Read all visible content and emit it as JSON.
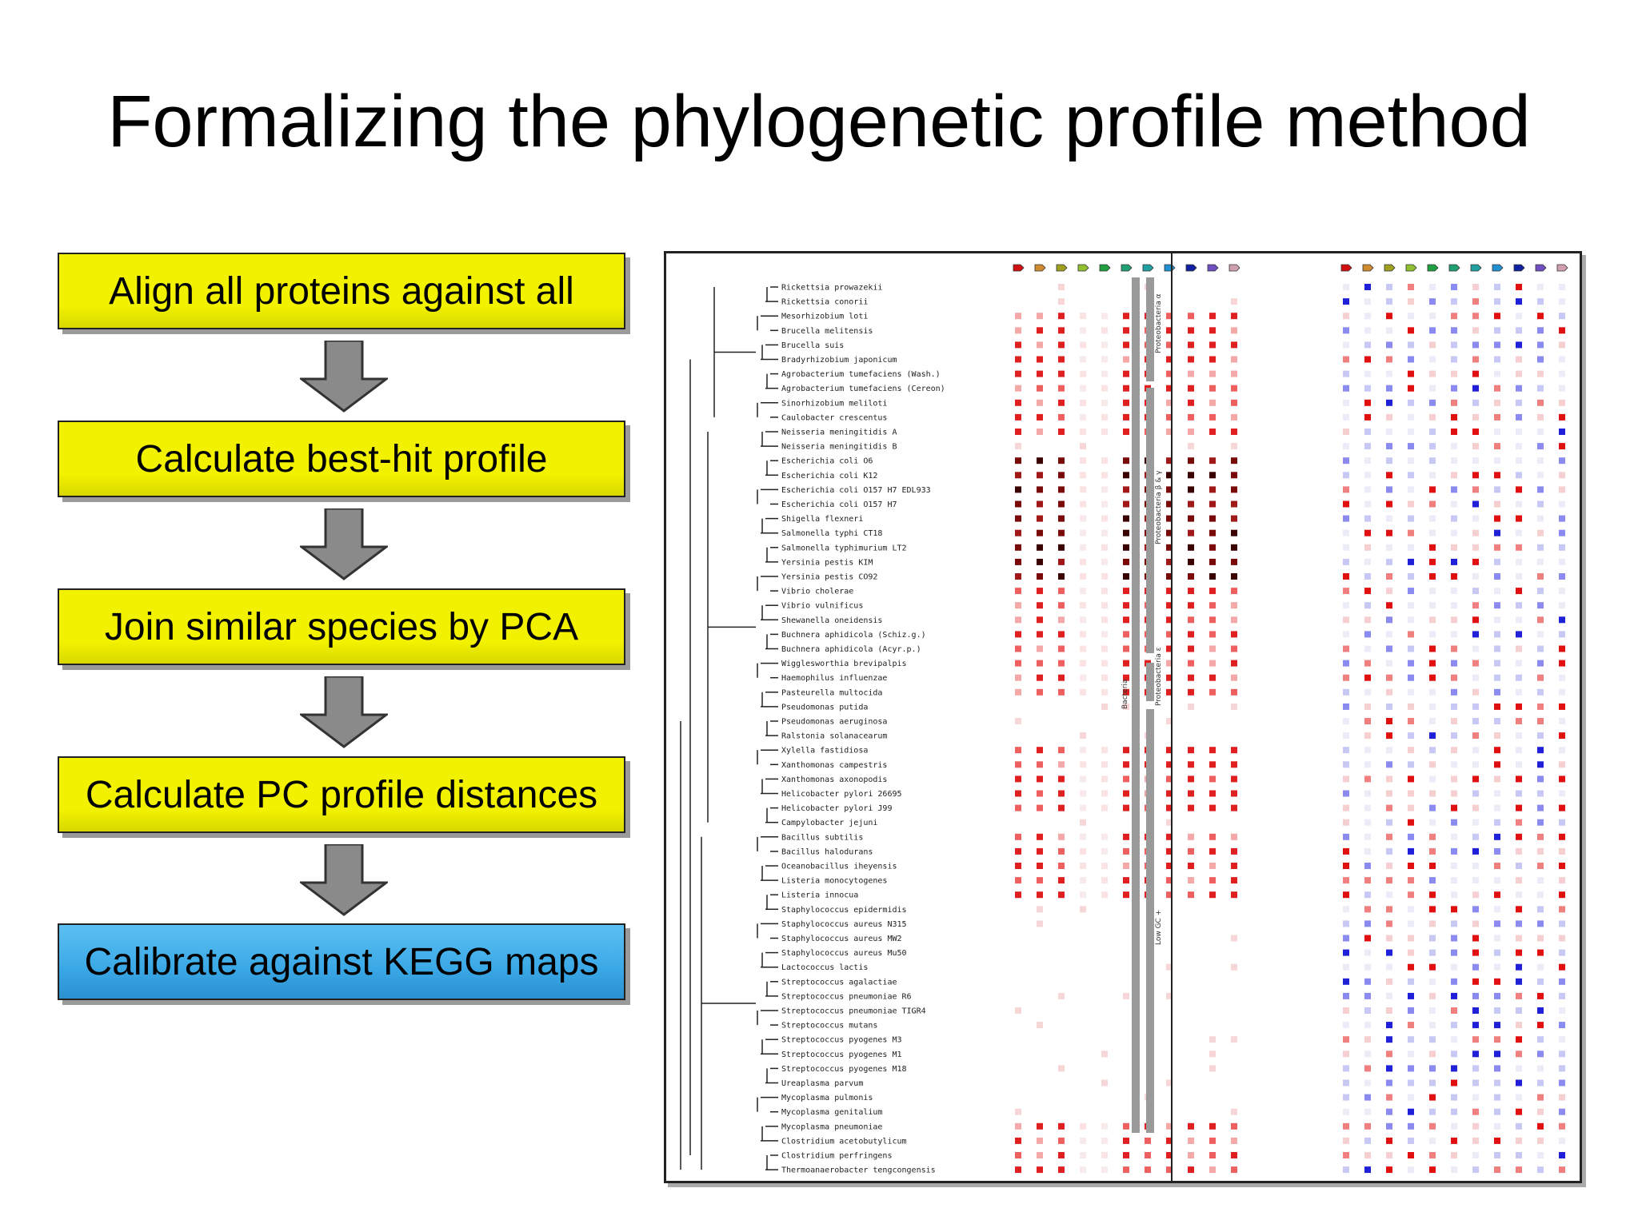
{
  "slide": {
    "title": "Formalizing the phylogenetic profile method",
    "steps": [
      {
        "label": "Align all proteins against all",
        "color": "#f2f200"
      },
      {
        "label": "Calculate best-hit profile",
        "color": "#f2f200"
      },
      {
        "label": "Join similar species by PCA",
        "color": "#f2f200"
      },
      {
        "label": "Calculate PC profile distances",
        "color": "#f2f200"
      },
      {
        "label": "Calibrate against KEGG maps",
        "color": "#3aa8e6"
      }
    ],
    "arrow_icon": "down-arrow-icon"
  },
  "figure": {
    "species": [
      "Rickettsia prowazekii",
      "Rickettsia conorii",
      "Mesorhizobium loti",
      "Brucella melitensis",
      "Brucella suis",
      "Bradyrhizobium japonicum",
      "Agrobacterium tumefaciens (Wash.)",
      "Agrobacterium tumefaciens (Cereon)",
      "Sinorhizobium meliloti",
      "Caulobacter crescentus",
      "Neisseria meningitidis A",
      "Neisseria meningitidis B",
      "Escherichia coli O6",
      "Escherichia coli K12",
      "Escherichia coli O157 H7 EDL933",
      "Escherichia coli O157 H7",
      "Shigella flexneri",
      "Salmonella typhi CT18",
      "Salmonella typhimurium LT2",
      "Yersinia pestis KIM",
      "Yersinia pestis CO92",
      "Vibrio cholerae",
      "Vibrio vulnificus",
      "Shewanella oneidensis",
      "Buchnera aphidicola (Schiz.g.)",
      "Buchnera aphidicola (Acyr.p.)",
      "Wigglesworthia brevipalpis",
      "Haemophilus influenzae",
      "Pasteurella multocida",
      "Pseudomonas putida",
      "Pseudomonas aeruginosa",
      "Ralstonia solanacearum",
      "Xylella fastidiosa",
      "Xanthomonas campestris",
      "Xanthomonas axonopodis",
      "Helicobacter pylori 26695",
      "Helicobacter pylori J99",
      "Campylobacter jejuni",
      "Bacillus subtilis",
      "Bacillus halodurans",
      "Oceanobacillus iheyensis",
      "Listeria monocytogenes",
      "Listeria innocua",
      "Staphylococcus epidermidis",
      "Staphylococcus aureus N315",
      "Staphylococcus aureus MW2",
      "Staphylococcus aureus Mu50",
      "Lactococcus lactis",
      "Streptococcus agalactiae",
      "Streptococcus pneumoniae R6",
      "Streptococcus pneumoniae TIGR4",
      "Streptococcus mutans",
      "Streptococcus pyogenes M3",
      "Streptococcus pyogenes M1",
      "Streptococcus pyogenes M18",
      "Ureaplasma parvum",
      "Mycoplasma pulmonis",
      "Mycoplasma genitalium",
      "Mycoplasma pneumoniae",
      "Clostridium acetobutylicum",
      "Clostridium perfringens",
      "Thermoanaerobacter tengcongensis"
    ],
    "group_labels": [
      "Proteobacteria α",
      "Proteobacteria β & γ",
      "Proteobacteria ε",
      "Low GC +"
    ],
    "outer_group_label": "Bacteria",
    "header_colors": [
      "#d01010",
      "#d08a30",
      "#a0a020",
      "#90c030",
      "#20a040",
      "#20a070",
      "#20a0a0",
      "#2090d0",
      "#1020a0",
      "#7050c0",
      "#d0a0b0"
    ],
    "heatmap_red_color": "#d01010",
    "heatmap_blue_color": "#2020d0"
  }
}
